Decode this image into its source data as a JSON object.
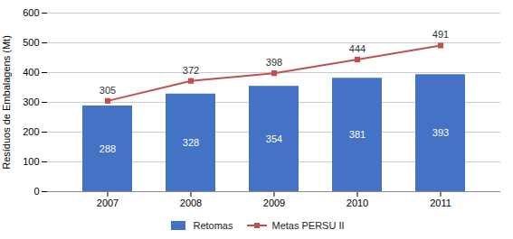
{
  "chart_data": {
    "type": "bar",
    "categories": [
      "2007",
      "2008",
      "2009",
      "2010",
      "2011"
    ],
    "series": [
      {
        "name": "Retomas",
        "type": "bar",
        "color": "#4472C4",
        "values": [
          288,
          328,
          354,
          381,
          393
        ]
      },
      {
        "name": "Metas PERSU II",
        "type": "line",
        "color": "#C0504D",
        "marker": "square",
        "values": [
          305,
          372,
          398,
          444,
          491
        ]
      }
    ],
    "ylabel": "Resíduos de Embalagens (Mt)",
    "ylim": [
      0,
      600
    ],
    "yticks": [
      0,
      100,
      200,
      300,
      400,
      500,
      600
    ],
    "grid": true,
    "data_labels": true,
    "legend": "bottom"
  }
}
